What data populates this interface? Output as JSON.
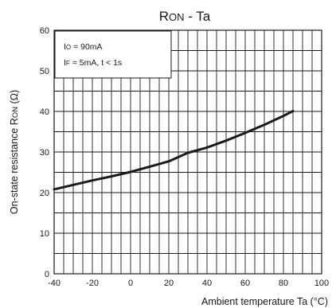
{
  "chart_data": {
    "type": "line",
    "title": {
      "main": "R",
      "sub": "ON",
      "rest": " - Ta"
    },
    "xlabel": {
      "main": "Ambient temperature Ta (°C)"
    },
    "ylabel": {
      "pre": "On-state resistance R",
      "sub": "ON",
      "post": " (Ω)"
    },
    "xlim": [
      -40,
      100
    ],
    "ylim": [
      0,
      60
    ],
    "grid": true,
    "x_ticks": [
      "-40",
      "-20",
      "0",
      "20",
      "40",
      "60",
      "80",
      "100"
    ],
    "y_ticks": [
      "0",
      "10",
      "20",
      "30",
      "40",
      "50",
      "60"
    ],
    "annotations": [
      {
        "main": "I",
        "sub": "O",
        "rest": " = 90mA"
      },
      {
        "main": "I",
        "sub": "F",
        "rest": " = 5mA,  t < 1s"
      }
    ],
    "series": [
      {
        "x": [
          -40,
          -30,
          -20,
          -10,
          0,
          10,
          20,
          30,
          40,
          50,
          60,
          70,
          80,
          85
        ],
        "y": [
          20.8,
          21.9,
          23.0,
          24.0,
          25.1,
          26.4,
          27.7,
          29.8,
          31.1,
          32.8,
          34.7,
          36.7,
          38.9,
          40.1
        ]
      }
    ]
  }
}
